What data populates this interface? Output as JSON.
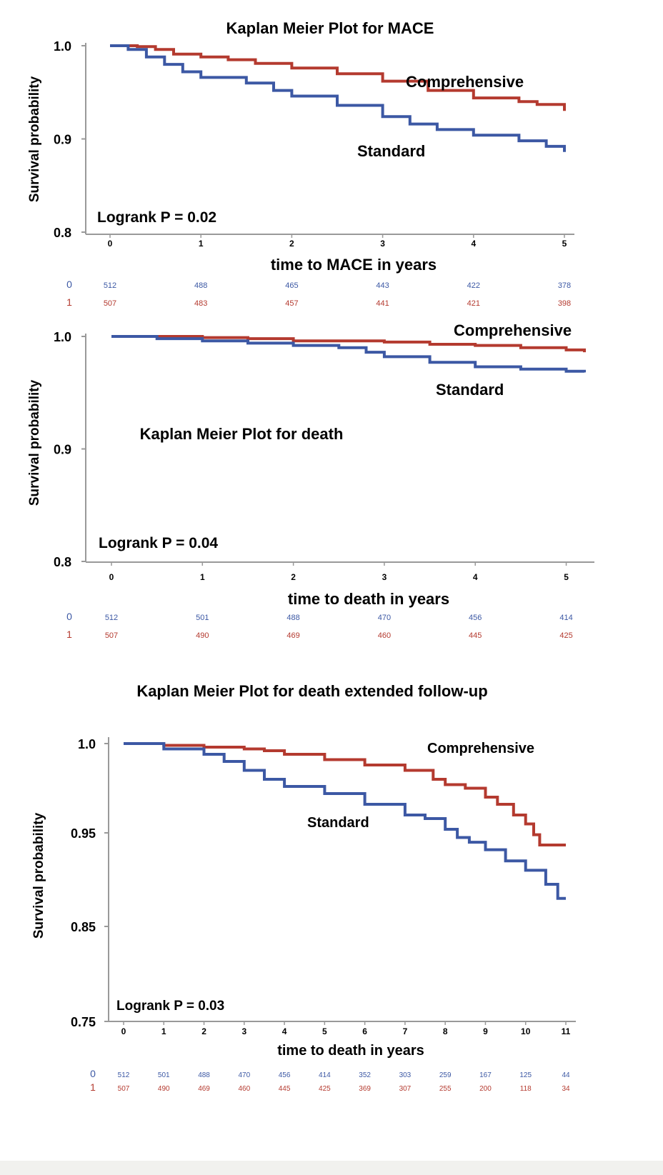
{
  "colors": {
    "standard": "#3c58a4",
    "comprehensive": "#b43a2f",
    "axis": "#999999",
    "text": "#000000"
  },
  "chart_data": [
    {
      "type": "line",
      "title": "Kaplan Meier Plot for MACE",
      "xlabel": "time to MACE in years",
      "ylabel": "Survival probability",
      "xlim": [
        0,
        5
      ],
      "ylim": [
        0.8,
        1.0
      ],
      "x_ticks": [
        "0",
        "1",
        "2",
        "3",
        "4",
        "5"
      ],
      "y_ticks": [
        "1.0",
        "0.9",
        "0.8"
      ],
      "annotation": "Logrank P = 0.02",
      "series": [
        {
          "name": "Comprehensive",
          "x": [
            0,
            0.3,
            0.5,
            0.7,
            1.0,
            1.3,
            1.6,
            2.0,
            2.5,
            3.0,
            3.5,
            4.0,
            4.5,
            4.7,
            5.0
          ],
          "values": [
            1.0,
            0.999,
            0.996,
            0.991,
            0.988,
            0.985,
            0.981,
            0.976,
            0.97,
            0.962,
            0.952,
            0.944,
            0.94,
            0.937,
            0.93
          ]
        },
        {
          "name": "Standard",
          "x": [
            0,
            0.2,
            0.4,
            0.6,
            0.8,
            1.0,
            1.5,
            1.8,
            2.0,
            2.5,
            3.0,
            3.3,
            3.6,
            4.0,
            4.5,
            4.8,
            5.0
          ],
          "values": [
            1.0,
            0.996,
            0.988,
            0.98,
            0.972,
            0.966,
            0.96,
            0.952,
            0.946,
            0.936,
            0.924,
            0.916,
            0.91,
            0.904,
            0.898,
            0.892,
            0.886
          ]
        }
      ],
      "risk_table": {
        "rows": [
          {
            "label": "0",
            "values": [
              "512",
              "488",
              "465",
              "443",
              "422",
              "378"
            ]
          },
          {
            "label": "1",
            "values": [
              "507",
              "483",
              "457",
              "441",
              "421",
              "398"
            ]
          }
        ]
      }
    },
    {
      "type": "line",
      "title": "Kaplan Meier Plot for death",
      "xlabel": "time to death in years",
      "ylabel": "Survival probability",
      "xlim": [
        0,
        5.2
      ],
      "ylim": [
        0.8,
        1.0
      ],
      "x_ticks": [
        "0",
        "1",
        "2",
        "3",
        "4",
        "5"
      ],
      "y_ticks": [
        "1.0",
        "0.9",
        "0.8"
      ],
      "annotation": "Logrank P = 0.04",
      "series": [
        {
          "name": "Comprehensive",
          "x": [
            0,
            1.0,
            1.5,
            2.0,
            3.0,
            3.5,
            4.0,
            4.5,
            5.0,
            5.2
          ],
          "values": [
            1.0,
            0.999,
            0.998,
            0.996,
            0.995,
            0.993,
            0.992,
            0.99,
            0.988,
            0.986
          ]
        },
        {
          "name": "Standard",
          "x": [
            0,
            0.5,
            1.0,
            1.5,
            2.0,
            2.5,
            2.8,
            3.0,
            3.5,
            4.0,
            4.5,
            5.0,
            5.2
          ],
          "values": [
            1.0,
            0.998,
            0.996,
            0.994,
            0.992,
            0.99,
            0.986,
            0.982,
            0.977,
            0.973,
            0.971,
            0.969,
            0.968
          ]
        }
      ],
      "risk_table": {
        "rows": [
          {
            "label": "0",
            "values": [
              "512",
              "501",
              "488",
              "470",
              "456",
              "414"
            ]
          },
          {
            "label": "1",
            "values": [
              "507",
              "490",
              "469",
              "460",
              "445",
              "425"
            ]
          }
        ]
      }
    },
    {
      "type": "line",
      "title": "Kaplan Meier Plot for death extended follow-up",
      "xlabel": "time to death in years",
      "ylabel": "Survival probability",
      "xlim": [
        0,
        11
      ],
      "ylim": [
        0.75,
        1.0
      ],
      "x_ticks": [
        "0",
        "1",
        "2",
        "3",
        "4",
        "5",
        "6",
        "7",
        "8",
        "9",
        "10",
        "11"
      ],
      "y_ticks": [
        "1.0",
        "0.95",
        "0.85",
        "0.75"
      ],
      "annotation": "Logrank P = 0.03",
      "series": [
        {
          "name": "Comprehensive",
          "x": [
            0,
            1,
            2,
            3,
            3.5,
            4,
            5,
            6,
            7,
            7.7,
            8,
            8.5,
            9,
            9.3,
            9.7,
            10,
            10.2,
            10.35,
            11
          ],
          "values": [
            1.0,
            0.999,
            0.998,
            0.997,
            0.996,
            0.994,
            0.991,
            0.988,
            0.985,
            0.98,
            0.977,
            0.975,
            0.97,
            0.966,
            0.96,
            0.955,
            0.948,
            0.937,
            0.937
          ]
        },
        {
          "name": "Standard",
          "x": [
            0,
            1,
            2,
            2.5,
            3,
            3.5,
            4,
            5,
            6,
            7,
            7.5,
            8,
            8.3,
            8.6,
            9,
            9.5,
            10,
            10.5,
            10.8,
            11
          ],
          "values": [
            1.0,
            0.997,
            0.994,
            0.99,
            0.985,
            0.98,
            0.976,
            0.972,
            0.966,
            0.96,
            0.958,
            0.952,
            0.945,
            0.94,
            0.932,
            0.92,
            0.91,
            0.895,
            0.88,
            0.88
          ]
        }
      ],
      "risk_table": {
        "rows": [
          {
            "label": "0",
            "values": [
              "512",
              "501",
              "488",
              "470",
              "456",
              "414",
              "352",
              "303",
              "259",
              "167",
              "125",
              "44"
            ]
          },
          {
            "label": "1",
            "values": [
              "507",
              "490",
              "469",
              "460",
              "445",
              "425",
              "369",
              "307",
              "255",
              "200",
              "118",
              "34"
            ]
          }
        ]
      }
    }
  ]
}
